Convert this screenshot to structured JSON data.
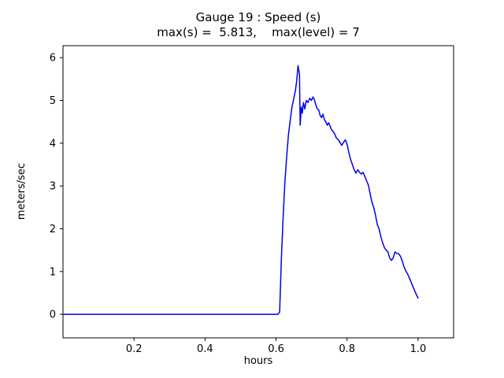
{
  "chart_data": {
    "type": "line",
    "title": "Gauge 19 : Speed (s)",
    "subtitle": "max(s) =  5.813,    max(level) = 7",
    "xlabel": "hours",
    "ylabel": "meters/sec",
    "xlim": [
      0,
      1.1
    ],
    "ylim": [
      -0.55,
      6.28
    ],
    "xticks": [
      0.2,
      0.4,
      0.6,
      0.8,
      1.0
    ],
    "xtick_labels": [
      "0.2",
      "0.4",
      "0.6",
      "0.8",
      "1.0"
    ],
    "yticks": [
      0,
      1,
      2,
      3,
      4,
      5,
      6
    ],
    "ytick_labels": [
      "0",
      "1",
      "2",
      "3",
      "4",
      "5",
      "6"
    ],
    "grid": false,
    "legend_position": "none",
    "line_color": "#0000ee",
    "axis_color": "#000000",
    "max_s": 5.813,
    "max_level": 7,
    "series": [
      {
        "name": "Speed (s)",
        "points": [
          [
            0.0,
            0.0
          ],
          [
            0.605,
            0.0
          ],
          [
            0.61,
            0.05
          ],
          [
            0.615,
            1.3
          ],
          [
            0.62,
            2.3
          ],
          [
            0.625,
            3.1
          ],
          [
            0.63,
            3.7
          ],
          [
            0.635,
            4.2
          ],
          [
            0.64,
            4.55
          ],
          [
            0.645,
            4.85
          ],
          [
            0.65,
            5.05
          ],
          [
            0.655,
            5.25
          ],
          [
            0.658,
            5.45
          ],
          [
            0.662,
            5.813
          ],
          [
            0.666,
            5.6
          ],
          [
            0.668,
            4.42
          ],
          [
            0.671,
            4.85
          ],
          [
            0.674,
            4.7
          ],
          [
            0.677,
            4.95
          ],
          [
            0.681,
            4.8
          ],
          [
            0.685,
            5.0
          ],
          [
            0.69,
            4.95
          ],
          [
            0.695,
            5.05
          ],
          [
            0.7,
            5.0
          ],
          [
            0.704,
            5.08
          ],
          [
            0.708,
            5.02
          ],
          [
            0.712,
            4.9
          ],
          [
            0.716,
            4.8
          ],
          [
            0.72,
            4.78
          ],
          [
            0.724,
            4.65
          ],
          [
            0.728,
            4.6
          ],
          [
            0.732,
            4.68
          ],
          [
            0.736,
            4.55
          ],
          [
            0.74,
            4.5
          ],
          [
            0.744,
            4.42
          ],
          [
            0.748,
            4.48
          ],
          [
            0.752,
            4.4
          ],
          [
            0.756,
            4.32
          ],
          [
            0.76,
            4.28
          ],
          [
            0.765,
            4.22
          ],
          [
            0.77,
            4.12
          ],
          [
            0.775,
            4.08
          ],
          [
            0.78,
            4.02
          ],
          [
            0.785,
            3.95
          ],
          [
            0.79,
            4.02
          ],
          [
            0.795,
            4.08
          ],
          [
            0.8,
            3.98
          ],
          [
            0.805,
            3.78
          ],
          [
            0.81,
            3.62
          ],
          [
            0.815,
            3.5
          ],
          [
            0.82,
            3.38
          ],
          [
            0.825,
            3.3
          ],
          [
            0.83,
            3.38
          ],
          [
            0.835,
            3.32
          ],
          [
            0.84,
            3.28
          ],
          [
            0.845,
            3.32
          ],
          [
            0.85,
            3.22
          ],
          [
            0.855,
            3.12
          ],
          [
            0.86,
            3.02
          ],
          [
            0.865,
            2.82
          ],
          [
            0.87,
            2.62
          ],
          [
            0.875,
            2.5
          ],
          [
            0.88,
            2.32
          ],
          [
            0.885,
            2.1
          ],
          [
            0.89,
            2.0
          ],
          [
            0.895,
            1.82
          ],
          [
            0.9,
            1.68
          ],
          [
            0.905,
            1.56
          ],
          [
            0.91,
            1.5
          ],
          [
            0.915,
            1.46
          ],
          [
            0.92,
            1.32
          ],
          [
            0.925,
            1.26
          ],
          [
            0.93,
            1.32
          ],
          [
            0.935,
            1.46
          ],
          [
            0.94,
            1.42
          ],
          [
            0.945,
            1.42
          ],
          [
            0.95,
            1.36
          ],
          [
            0.955,
            1.26
          ],
          [
            0.96,
            1.12
          ],
          [
            0.965,
            1.02
          ],
          [
            0.97,
            0.95
          ],
          [
            0.975,
            0.86
          ],
          [
            0.98,
            0.76
          ],
          [
            0.985,
            0.66
          ],
          [
            0.99,
            0.56
          ],
          [
            0.995,
            0.46
          ],
          [
            1.0,
            0.38
          ]
        ]
      }
    ]
  }
}
